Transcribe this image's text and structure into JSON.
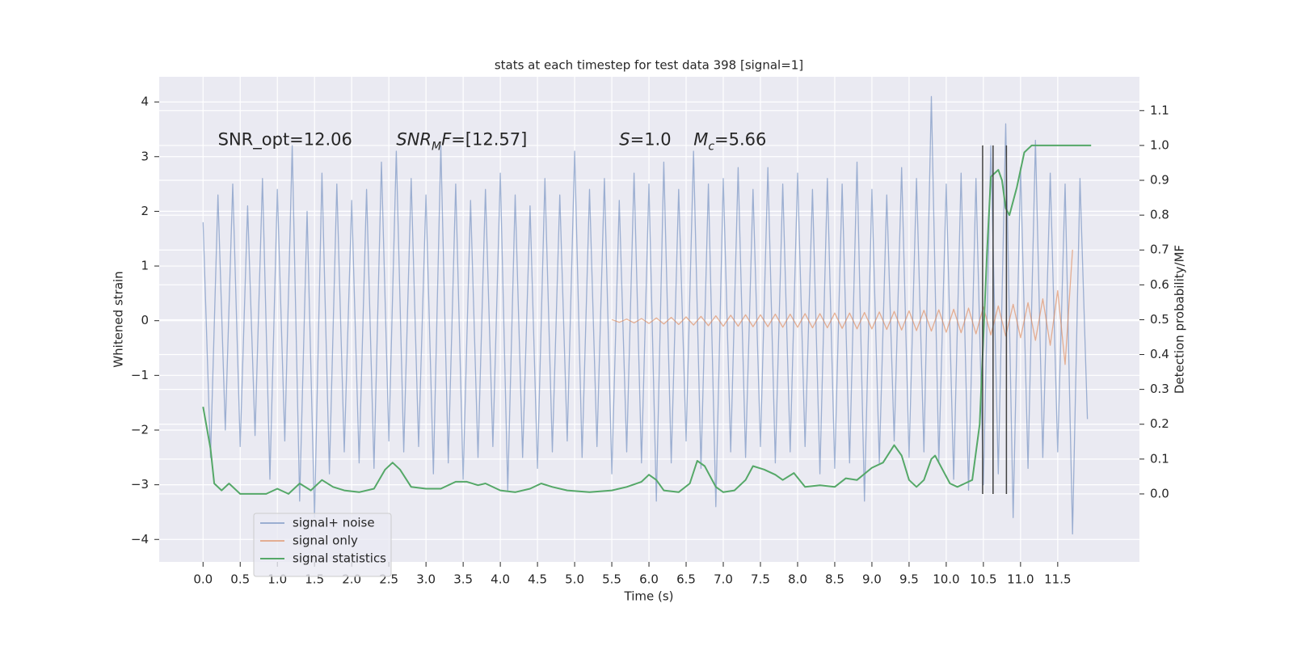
{
  "chart_data": {
    "type": "line",
    "title": "stats at each timestep for test data 398 [signal=1]",
    "x_label": "Time (s)",
    "y_label": "Whitened strain",
    "y2_label": "Detection probability/MF",
    "xlim": [
      -0.59,
      12.6
    ],
    "ylim": [
      -4.41,
      4.46
    ],
    "y2lim": [
      -0.195,
      1.197
    ],
    "xticks": [
      {
        "value": 0,
        "label": "0.0"
      },
      0.5,
      {
        "value": 1,
        "label": "1.0"
      },
      1.5,
      {
        "value": 2,
        "label": "2.0"
      },
      2.5,
      {
        "value": 3,
        "label": "3.0"
      },
      3.5,
      {
        "value": 4,
        "label": "4.0"
      },
      4.5,
      {
        "value": 5,
        "label": "5.0"
      },
      5.5,
      {
        "value": 6,
        "label": "6.0"
      },
      6.5,
      {
        "value": 7,
        "label": "7.0"
      },
      7.5,
      {
        "value": 8,
        "label": "8.0"
      },
      8.5,
      {
        "value": 9,
        "label": "9.0"
      },
      9.5,
      {
        "value": 10,
        "label": "10.0"
      },
      10.5,
      {
        "value": 11,
        "label": "11.0"
      },
      11.5
    ],
    "yticks": [
      {
        "value": -4,
        "label": "−4"
      },
      {
        "value": -3,
        "label": "−3"
      },
      {
        "value": -2,
        "label": "−2"
      },
      {
        "value": -1,
        "label": "−1"
      },
      0,
      1,
      2,
      3,
      4
    ],
    "y2ticks": [
      {
        "value": 0,
        "label": "0.0"
      },
      0.1,
      0.2,
      0.3,
      0.4,
      0.5,
      0.6,
      0.7,
      0.8,
      0.9,
      {
        "value": 1,
        "label": "1.0"
      },
      1.1
    ],
    "grid": true,
    "legend": "lower left",
    "annotations": [
      {
        "x": 0.2,
        "y": 3.3,
        "parts": [
          {
            "text": "SNR_opt=12.06"
          }
        ]
      },
      {
        "x": 2.6,
        "y": 3.3,
        "parts": [
          {
            "text": "SNR",
            "italic": true
          },
          {
            "text": "M",
            "italic": true,
            "sub": true
          },
          {
            "text": "F",
            "italic": true
          },
          {
            "text": "=[12.57]"
          }
        ]
      },
      {
        "x": 5.6,
        "y": 3.3,
        "parts": [
          {
            "text": "S",
            "italic": true
          },
          {
            "text": "=1.0"
          }
        ]
      },
      {
        "x": 6.6,
        "y": 3.3,
        "parts": [
          {
            "text": "M",
            "italic": true
          },
          {
            "text": "c",
            "italic": true,
            "sub": true
          },
          {
            "text": "=5.66"
          }
        ]
      }
    ],
    "vlines": {
      "x": [
        10.49,
        10.63,
        10.81
      ],
      "y2": [
        0,
        1
      ],
      "color": "#404040"
    },
    "series": [
      {
        "name": "signal+ noise",
        "color": "#4c72b0",
        "opacity": 0.5,
        "x": [
          0.0,
          0.1,
          0.2,
          0.3,
          0.4,
          0.5,
          0.6,
          0.7,
          0.8,
          0.9,
          1.0,
          1.1,
          1.2,
          1.3,
          1.4,
          1.5,
          1.6,
          1.7,
          1.8,
          1.9,
          2.0,
          2.1,
          2.2,
          2.3,
          2.4,
          2.5,
          2.6,
          2.7,
          2.8,
          2.9,
          3.0,
          3.1,
          3.2,
          3.3,
          3.4,
          3.5,
          3.6,
          3.7,
          3.8,
          3.9,
          4.0,
          4.1,
          4.2,
          4.3,
          4.4,
          4.5,
          4.6,
          4.7,
          4.8,
          4.9,
          5.0,
          5.1,
          5.2,
          5.3,
          5.4,
          5.5,
          5.6,
          5.7,
          5.8,
          5.9,
          6.0,
          6.1,
          6.2,
          6.3,
          6.4,
          6.5,
          6.6,
          6.7,
          6.8,
          6.9,
          7.0,
          7.1,
          7.2,
          7.3,
          7.4,
          7.5,
          7.6,
          7.7,
          7.8,
          7.9,
          8.0,
          8.1,
          8.2,
          8.3,
          8.4,
          8.5,
          8.6,
          8.7,
          8.8,
          8.9,
          9.0,
          9.1,
          9.2,
          9.3,
          9.4,
          9.5,
          9.6,
          9.7,
          9.8,
          9.9,
          10.0,
          10.1,
          10.2,
          10.3,
          10.4,
          10.5,
          10.6,
          10.7,
          10.8,
          10.9,
          11.0,
          11.1,
          11.2,
          11.3,
          11.4,
          11.5,
          11.6,
          11.7,
          11.8,
          11.9
        ],
        "values": [
          1.8,
          -2.5,
          2.3,
          -2.0,
          2.5,
          -2.3,
          2.1,
          -2.1,
          2.6,
          -2.9,
          2.4,
          -2.2,
          3.2,
          -3.3,
          2.0,
          -3.6,
          2.7,
          -2.8,
          2.5,
          -2.4,
          2.2,
          -2.6,
          2.4,
          -2.7,
          2.9,
          -2.2,
          3.1,
          -2.4,
          2.6,
          -2.3,
          2.3,
          -2.8,
          3.2,
          -2.6,
          2.5,
          -2.9,
          2.2,
          -2.5,
          2.4,
          -2.3,
          2.7,
          -3.1,
          2.3,
          -2.5,
          2.1,
          -2.7,
          2.6,
          -2.4,
          2.3,
          -2.2,
          3.1,
          -2.5,
          2.4,
          -2.3,
          2.6,
          -2.8,
          2.2,
          -2.4,
          2.7,
          -2.6,
          2.5,
          -3.3,
          2.9,
          -2.6,
          2.4,
          -2.2,
          3.1,
          -2.7,
          2.5,
          -3.4,
          2.6,
          -2.4,
          2.8,
          -2.5,
          2.4,
          -2.3,
          2.8,
          -2.6,
          2.5,
          -2.4,
          2.7,
          -2.3,
          2.4,
          -2.8,
          2.6,
          -2.7,
          2.5,
          -2.6,
          2.9,
          -3.3,
          2.4,
          -2.6,
          2.3,
          -2.2,
          2.8,
          -2.5,
          2.6,
          -2.4,
          4.1,
          -2.6,
          2.5,
          -2.9,
          2.7,
          -3.1,
          2.6,
          -3.0,
          3.2,
          -2.8,
          3.6,
          -3.6,
          2.8,
          -2.7,
          3.3,
          -2.5,
          2.7,
          -2.4,
          2.5,
          -3.9,
          2.6,
          -1.8
        ]
      },
      {
        "name": "signal only",
        "color": "#dd8452",
        "opacity": 0.6,
        "x": [
          5.5,
          5.6,
          5.7,
          5.8,
          5.9,
          6.0,
          6.1,
          6.2,
          6.3,
          6.4,
          6.5,
          6.6,
          6.7,
          6.8,
          6.9,
          7.0,
          7.1,
          7.2,
          7.3,
          7.4,
          7.5,
          7.6,
          7.7,
          7.8,
          7.9,
          8.0,
          8.1,
          8.2,
          8.3,
          8.4,
          8.5,
          8.6,
          8.7,
          8.8,
          8.9,
          9.0,
          9.1,
          9.2,
          9.3,
          9.4,
          9.5,
          9.6,
          9.7,
          9.8,
          9.9,
          10.0,
          10.1,
          10.2,
          10.3,
          10.4,
          10.5,
          10.6,
          10.7,
          10.8,
          10.9,
          11.0,
          11.1,
          11.2,
          11.3,
          11.4,
          11.5,
          11.6,
          11.7
        ],
        "values": [
          0.02,
          -0.03,
          0.03,
          -0.04,
          0.04,
          -0.05,
          0.05,
          -0.06,
          0.06,
          -0.07,
          0.07,
          -0.08,
          0.08,
          -0.09,
          0.09,
          -0.1,
          0.1,
          -0.1,
          0.11,
          -0.11,
          0.11,
          -0.11,
          0.12,
          -0.12,
          0.12,
          -0.12,
          0.13,
          -0.13,
          0.13,
          -0.13,
          0.14,
          -0.14,
          0.14,
          -0.15,
          0.15,
          -0.15,
          0.16,
          -0.16,
          0.17,
          -0.17,
          0.18,
          -0.18,
          0.19,
          -0.19,
          0.2,
          -0.21,
          0.21,
          -0.22,
          0.23,
          -0.24,
          0.25,
          -0.26,
          0.27,
          -0.28,
          0.3,
          -0.31,
          0.33,
          -0.36,
          0.4,
          -0.45,
          0.55,
          -0.8,
          1.3
        ]
      },
      {
        "name": "signal statistics",
        "color": "#55a868",
        "opacity": 1,
        "axis": "y2",
        "x": [
          0.0,
          0.1,
          0.15,
          0.25,
          0.35,
          0.5,
          0.7,
          0.85,
          1.0,
          1.15,
          1.3,
          1.45,
          1.6,
          1.75,
          1.9,
          2.1,
          2.3,
          2.45,
          2.55,
          2.65,
          2.8,
          3.0,
          3.2,
          3.4,
          3.55,
          3.7,
          3.8,
          4.0,
          4.2,
          4.4,
          4.55,
          4.7,
          4.9,
          5.2,
          5.5,
          5.7,
          5.9,
          6.0,
          6.1,
          6.2,
          6.4,
          6.55,
          6.65,
          6.75,
          6.9,
          7.0,
          7.15,
          7.3,
          7.4,
          7.55,
          7.7,
          7.8,
          7.95,
          8.1,
          8.3,
          8.5,
          8.65,
          8.8,
          9.0,
          9.15,
          9.3,
          9.4,
          9.5,
          9.6,
          9.7,
          9.8,
          9.85,
          9.95,
          10.05,
          10.15,
          10.25,
          10.35,
          10.45,
          10.55,
          10.6,
          10.7,
          10.75,
          10.8,
          10.85,
          10.95,
          11.05,
          11.15,
          11.95
        ],
        "values": [
          0.25,
          0.13,
          0.03,
          0.01,
          0.03,
          0.0,
          0.0,
          0.0,
          0.015,
          0.0,
          0.03,
          0.01,
          0.04,
          0.02,
          0.01,
          0.005,
          0.015,
          0.07,
          0.09,
          0.07,
          0.02,
          0.015,
          0.015,
          0.035,
          0.035,
          0.025,
          0.03,
          0.01,
          0.005,
          0.015,
          0.03,
          0.02,
          0.01,
          0.005,
          0.01,
          0.02,
          0.035,
          0.055,
          0.04,
          0.01,
          0.005,
          0.03,
          0.095,
          0.08,
          0.02,
          0.005,
          0.01,
          0.04,
          0.08,
          0.07,
          0.055,
          0.04,
          0.06,
          0.02,
          0.025,
          0.02,
          0.045,
          0.04,
          0.075,
          0.09,
          0.14,
          0.11,
          0.04,
          0.02,
          0.04,
          0.1,
          0.11,
          0.07,
          0.03,
          0.02,
          0.03,
          0.04,
          0.2,
          0.7,
          0.91,
          0.93,
          0.9,
          0.82,
          0.8,
          0.88,
          0.98,
          1.0,
          1.0
        ]
      }
    ]
  }
}
